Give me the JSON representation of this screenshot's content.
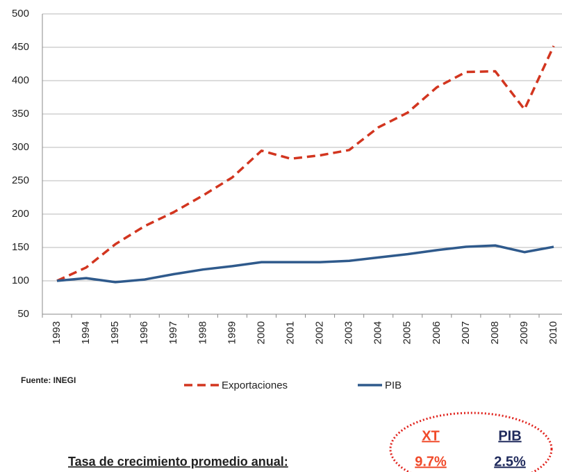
{
  "chart_data": {
    "type": "line",
    "categories": [
      "1993",
      "1994",
      "1995",
      "1996",
      "1997",
      "1998",
      "1999",
      "2000",
      "2001",
      "2002",
      "2003",
      "2004",
      "2005",
      "2006",
      "2007",
      "2008",
      "2009",
      "2010"
    ],
    "series": [
      {
        "name": "Exportaciones",
        "color": "#d2351f",
        "style": "dashed",
        "values": [
          100,
          120,
          155,
          182,
          203,
          228,
          255,
          295,
          283,
          288,
          296,
          330,
          352,
          390,
          413,
          414,
          357,
          452
        ]
      },
      {
        "name": "PIB",
        "color": "#2f5a8c",
        "style": "solid",
        "values": [
          100,
          104,
          98,
          102,
          110,
          117,
          122,
          128,
          128,
          128,
          130,
          135,
          140,
          146,
          151,
          153,
          143,
          151
        ]
      }
    ],
    "ylim": [
      50,
      500
    ],
    "yticks": [
      50,
      100,
      150,
      200,
      250,
      300,
      350,
      400,
      450,
      500
    ],
    "grid": true,
    "source": "Fuente: INEGI",
    "growth_title": "Tasa de crecimiento promedio anual:",
    "growth": [
      {
        "name": "XT",
        "label": "9.7%",
        "color": "#f04a2a"
      },
      {
        "name": "PIB",
        "label": "2.5%",
        "color": "#1f2a5c"
      }
    ]
  }
}
